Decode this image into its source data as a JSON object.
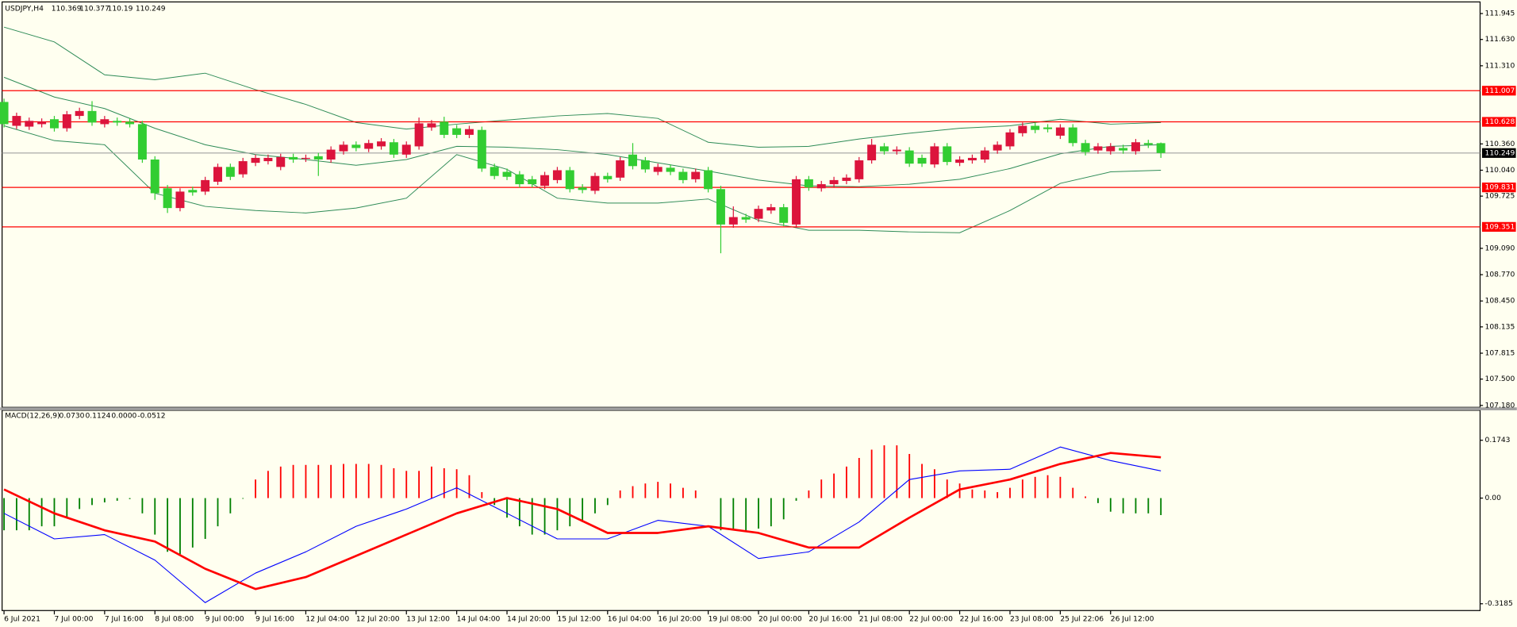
{
  "chart_data": [
    {
      "type": "candlestick",
      "title": "USDJPY,H4",
      "open": [
        110.87,
        110.58,
        110.57,
        110.6,
        110.66,
        110.55,
        110.7,
        110.76,
        110.6,
        110.64,
        110.63,
        110.6,
        110.17,
        109.82,
        109.58,
        109.8,
        109.78,
        109.9,
        110.08,
        109.99,
        110.13,
        110.15,
        110.08,
        110.2,
        110.18,
        110.21,
        110.17,
        110.27,
        110.35,
        110.3,
        110.33,
        110.38,
        110.23,
        110.33,
        110.56,
        110.63,
        110.55,
        110.47,
        110.53,
        110.08,
        110.02,
        109.99,
        109.93,
        109.85,
        109.92,
        110.04,
        109.83,
        109.79,
        109.97,
        109.95,
        110.23,
        110.16,
        110.02,
        110.07,
        110.02,
        109.93,
        110.04,
        109.81,
        109.38,
        109.47,
        109.45,
        109.55,
        109.59,
        109.38,
        109.93,
        109.82,
        109.87,
        109.91,
        109.93,
        110.16,
        110.33,
        110.27,
        110.28,
        110.19,
        110.11,
        110.33,
        110.13,
        110.16,
        110.17,
        110.28,
        110.33,
        110.49,
        110.58,
        110.56,
        110.46,
        110.56,
        110.37,
        110.28,
        110.27,
        110.31,
        110.27,
        110.37,
        110.369
      ],
      "high": [
        110.91,
        110.74,
        110.68,
        110.67,
        110.7,
        110.76,
        110.8,
        110.88,
        110.7,
        110.68,
        110.67,
        110.64,
        110.21,
        109.86,
        109.82,
        109.84,
        109.96,
        110.12,
        110.12,
        110.19,
        110.23,
        110.23,
        110.24,
        110.24,
        110.23,
        110.25,
        110.33,
        110.39,
        110.39,
        110.41,
        110.43,
        110.42,
        110.39,
        110.68,
        110.65,
        110.69,
        110.59,
        110.58,
        110.57,
        110.12,
        110.06,
        110.03,
        109.97,
        110.02,
        110.08,
        110.08,
        109.87,
        110.01,
        110.01,
        110.2,
        110.37,
        110.2,
        110.12,
        110.11,
        110.06,
        110.06,
        110.08,
        109.85,
        109.6,
        109.51,
        109.61,
        109.63,
        109.63,
        109.97,
        109.97,
        109.91,
        109.96,
        109.99,
        110.2,
        110.42,
        110.37,
        110.33,
        110.32,
        110.23,
        110.37,
        110.37,
        110.21,
        110.23,
        110.32,
        110.39,
        110.54,
        110.62,
        110.62,
        110.6,
        110.6,
        110.6,
        110.41,
        110.37,
        110.37,
        110.35,
        110.42,
        110.41,
        110.377
      ],
      "low": [
        110.56,
        110.54,
        110.53,
        110.56,
        110.51,
        110.51,
        110.66,
        110.58,
        110.56,
        110.58,
        110.56,
        110.13,
        109.68,
        109.52,
        109.54,
        109.73,
        109.74,
        109.86,
        109.92,
        109.95,
        110.09,
        110.11,
        110.04,
        110.13,
        110.14,
        109.97,
        110.13,
        110.23,
        110.27,
        110.26,
        110.29,
        110.19,
        110.19,
        110.29,
        110.52,
        110.43,
        110.43,
        110.43,
        110.02,
        109.93,
        109.92,
        109.83,
        109.83,
        109.81,
        109.88,
        109.77,
        109.76,
        109.75,
        109.89,
        109.91,
        110.05,
        110.01,
        109.98,
        109.98,
        109.88,
        109.89,
        109.77,
        109.03,
        109.34,
        109.4,
        109.41,
        109.51,
        109.36,
        109.34,
        109.79,
        109.78,
        109.83,
        109.87,
        109.89,
        110.12,
        110.23,
        110.23,
        110.08,
        110.08,
        110.07,
        110.1,
        110.09,
        110.12,
        110.13,
        110.24,
        110.29,
        110.45,
        110.49,
        110.5,
        110.42,
        110.33,
        110.22,
        110.24,
        110.23,
        110.24,
        110.23,
        110.31,
        110.19
      ],
      "close": [
        110.6,
        110.7,
        110.64,
        110.63,
        110.55,
        110.72,
        110.76,
        110.62,
        110.66,
        110.62,
        110.6,
        110.17,
        109.76,
        109.58,
        109.78,
        109.77,
        109.92,
        110.08,
        109.96,
        110.15,
        110.19,
        110.19,
        110.2,
        110.17,
        110.19,
        110.17,
        110.29,
        110.35,
        110.31,
        110.37,
        110.39,
        110.23,
        110.35,
        110.61,
        110.61,
        110.47,
        110.47,
        110.54,
        110.06,
        109.97,
        109.96,
        109.87,
        109.87,
        109.98,
        110.04,
        109.81,
        109.8,
        109.97,
        109.93,
        110.16,
        110.09,
        110.05,
        110.08,
        110.02,
        109.92,
        110.02,
        109.81,
        109.38,
        109.47,
        109.44,
        109.57,
        109.59,
        109.4,
        109.93,
        109.83,
        109.87,
        109.92,
        109.95,
        110.16,
        110.35,
        110.27,
        110.29,
        110.12,
        110.12,
        110.33,
        110.14,
        110.17,
        110.19,
        110.28,
        110.35,
        110.5,
        110.58,
        110.53,
        110.54,
        110.56,
        110.37,
        110.26,
        110.33,
        110.33,
        110.28,
        110.38,
        110.35,
        110.249
      ],
      "up_color": "#dc143c",
      "down_color": "#32cd32",
      "bands": [
        {
          "color": "#2e8b57",
          "x": [
            0,
            4,
            8,
            12,
            16,
            20,
            24,
            28,
            32,
            36,
            40,
            44,
            48,
            52,
            56,
            60,
            64,
            68,
            72,
            76,
            80,
            84,
            88,
            92
          ],
          "values": [
            111.78,
            111.6,
            111.2,
            111.14,
            111.22,
            111.02,
            110.84,
            110.62,
            110.54,
            110.6,
            110.65,
            110.7,
            110.73,
            110.67,
            110.38,
            110.32,
            110.33,
            110.42,
            110.49,
            110.55,
            110.58,
            110.66,
            110.6,
            110.62
          ]
        },
        {
          "color": "#2e8b57",
          "x": [
            0,
            4,
            8,
            12,
            16,
            20,
            24,
            28,
            32,
            36,
            40,
            44,
            48,
            52,
            56,
            60,
            64,
            68,
            72,
            76,
            80,
            84,
            88,
            92
          ],
          "values": [
            111.17,
            110.93,
            110.79,
            110.55,
            110.35,
            110.23,
            110.17,
            110.1,
            110.17,
            110.33,
            110.32,
            110.29,
            110.23,
            110.13,
            110.03,
            109.92,
            109.85,
            109.84,
            109.87,
            109.93,
            110.06,
            110.24,
            110.33,
            110.35
          ]
        },
        {
          "color": "#2e8b57",
          "x": [
            0,
            4,
            8,
            12,
            16,
            20,
            24,
            28,
            32,
            36,
            40,
            44,
            48,
            52,
            56,
            60,
            64,
            68,
            72,
            76,
            80,
            84,
            88,
            92
          ],
          "values": [
            110.58,
            110.4,
            110.35,
            109.76,
            109.6,
            109.55,
            109.52,
            109.58,
            109.7,
            110.23,
            110.05,
            109.7,
            109.64,
            109.64,
            109.69,
            109.43,
            109.31,
            109.31,
            109.29,
            109.28,
            109.55,
            109.88,
            110.02,
            110.04
          ]
        }
      ],
      "levels": [
        111.007,
        110.628,
        109.831,
        109.351
      ],
      "level_color": "#ff0000",
      "ylim": [
        107.18,
        111.945
      ],
      "yticks": [
        111.945,
        {
          "value": 111.63,
          "label": "111.630"
        },
        {
          "value": 111.31,
          "label": "111.310"
        },
        {
          "value": 110.36,
          "label": "110.360"
        },
        {
          "value": 110.04,
          "label": "110.040"
        },
        109.725,
        {
          "value": 109.09,
          "label": "109.090"
        },
        {
          "value": 108.77,
          "label": "108.770"
        },
        {
          "value": 108.45,
          "label": "108.450"
        },
        108.135,
        107.815,
        {
          "value": 107.5,
          "label": "107.500"
        },
        {
          "value": 107.18,
          "label": "107.180"
        }
      ]
    },
    {
      "type": "macd",
      "title": "MACD(12,26,9)",
      "readout": [
        "0.0730",
        "0.1124",
        "0.0000",
        "-0.0512"
      ],
      "values": [
        -0.097,
        -0.097,
        -0.097,
        -0.085,
        -0.085,
        -0.059,
        -0.033,
        -0.021,
        -0.013,
        -0.008,
        -0.003,
        -0.046,
        -0.11,
        -0.162,
        -0.169,
        -0.149,
        -0.123,
        -0.085,
        -0.046,
        -0.002,
        0.056,
        0.082,
        0.095,
        0.1,
        0.1,
        0.1,
        0.1,
        0.103,
        0.103,
        0.103,
        0.1,
        0.09,
        0.082,
        0.082,
        0.095,
        0.09,
        0.087,
        0.069,
        0.018,
        -0.021,
        -0.059,
        -0.085,
        -0.11,
        -0.11,
        -0.097,
        -0.085,
        -0.072,
        -0.046,
        -0.021,
        0.023,
        0.036,
        0.044,
        0.049,
        0.044,
        0.031,
        0.023,
        0,
        -0.097,
        -0.097,
        -0.097,
        -0.092,
        -0.085,
        -0.064,
        -0.008,
        0.023,
        0.056,
        0.074,
        0.095,
        0.121,
        0.146,
        0.159,
        0.159,
        0.133,
        0.103,
        0.087,
        0.056,
        0.044,
        0.026,
        0.023,
        0.018,
        0.031,
        0.056,
        0.064,
        0.069,
        0.064,
        0.031,
        0.005,
        -0.015,
        -0.041,
        -0.046,
        -0.046,
        -0.046,
        -0.0512
      ],
      "up_color": "#ff0000",
      "down_color": "#008000",
      "series": [
        {
          "color": "#0000ff",
          "x": [
            0,
            4,
            8,
            12,
            16,
            20,
            24,
            28,
            32,
            36,
            40,
            44,
            48,
            52,
            56,
            60,
            64,
            68,
            72,
            76,
            80,
            84,
            88,
            92
          ],
          "values": [
            -0.046,
            -0.123,
            -0.11,
            -0.187,
            -0.315,
            -0.226,
            -0.162,
            -0.085,
            -0.033,
            0.031,
            -0.046,
            -0.123,
            -0.123,
            -0.067,
            -0.085,
            -0.182,
            -0.162,
            -0.072,
            0.056,
            0.082,
            0.087,
            0.154,
            0.113,
            0.082
          ]
        },
        {
          "color": "#ff0000",
          "x": [
            0,
            4,
            8,
            12,
            16,
            20,
            24,
            28,
            32,
            36,
            40,
            44,
            48,
            52,
            56,
            60,
            64,
            68,
            72,
            76,
            80,
            84,
            88,
            92
          ],
          "values": [
            0.026,
            -0.046,
            -0.097,
            -0.131,
            -0.213,
            -0.274,
            -0.238,
            -0.174,
            -0.11,
            -0.046,
            0,
            -0.033,
            -0.105,
            -0.105,
            -0.085,
            -0.105,
            -0.149,
            -0.149,
            -0.059,
            0.026,
            0.056,
            0.103,
            0.136,
            0.123
          ]
        }
      ],
      "ylim": [
        -0.3185,
        0.1743
      ],
      "yticks": [
        0.1743,
        {
          "value": 0,
          "label": "0.00"
        },
        -0.3185
      ],
      "xticks": [
        {
          "value": 0,
          "label": "6 Jul 2021"
        },
        {
          "value": 4,
          "label": "7 Jul 00:00"
        },
        {
          "value": 8,
          "label": "7 Jul 16:00"
        },
        {
          "value": 12,
          "label": "8 Jul 08:00"
        },
        {
          "value": 16,
          "label": "9 Jul 00:00"
        },
        {
          "value": 20,
          "label": "9 Jul 16:00"
        },
        {
          "value": 24,
          "label": "12 Jul 04:00"
        },
        {
          "value": 28,
          "label": "12 Jul 20:00"
        },
        {
          "value": 32,
          "label": "13 Jul 12:00"
        },
        {
          "value": 36,
          "label": "14 Jul 04:00"
        },
        {
          "value": 40,
          "label": "14 Jul 20:00"
        },
        {
          "value": 44,
          "label": "15 Jul 12:00"
        },
        {
          "value": 48,
          "label": "16 Jul 04:00"
        },
        {
          "value": 52,
          "label": "16 Jul 20:00"
        },
        {
          "value": 56,
          "label": "19 Jul 08:00"
        },
        {
          "value": 60,
          "label": "20 Jul 00:00"
        },
        {
          "value": 64,
          "label": "20 Jul 16:00"
        },
        {
          "value": 68,
          "label": "21 Jul 08:00"
        },
        {
          "value": 72,
          "label": "22 Jul 00:00"
        },
        {
          "value": 76,
          "label": "22 Jul 16:00"
        },
        {
          "value": 80,
          "label": "23 Jul 08:00"
        },
        {
          "value": 84,
          "label": "25 Jul 22:06"
        },
        {
          "value": 88,
          "label": "26 Jul 12:00"
        }
      ]
    }
  ]
}
